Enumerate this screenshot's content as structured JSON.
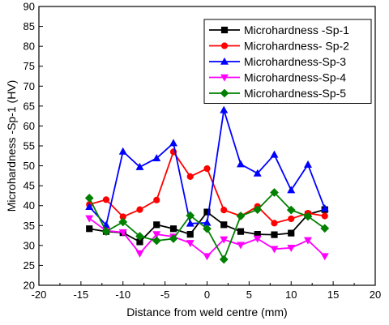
{
  "chart_data": {
    "type": "line",
    "xlabel": "Distance from weld centre (mm)",
    "ylabel": "Microhardness -Sp-1 (HV)",
    "xlim": [
      -20,
      20
    ],
    "ylim": [
      20,
      90
    ],
    "xticks": [
      -20,
      -15,
      -10,
      -5,
      0,
      5,
      10,
      15,
      20
    ],
    "yticks": [
      20,
      25,
      30,
      35,
      40,
      45,
      50,
      55,
      60,
      65,
      70,
      75,
      80,
      85,
      90
    ],
    "grid": false,
    "legend_position": "top-right",
    "x": [
      -14,
      -12,
      -10,
      -8,
      -6,
      -4,
      -2,
      0,
      2,
      4,
      6,
      8,
      10,
      12,
      14
    ],
    "series": [
      {
        "name": "Microhardness -Sp-1",
        "color": "#000000",
        "marker": "square",
        "values": [
          34.2,
          33.5,
          33.2,
          30.9,
          35.2,
          34.2,
          32.8,
          38.4,
          35.2,
          33.5,
          32.8,
          32.7,
          33.1,
          37.8,
          39.0
        ]
      },
      {
        "name": "Microhardness- Sp-2",
        "color": "#ff0000",
        "marker": "circle",
        "values": [
          40.3,
          41.5,
          37.2,
          39.0,
          41.4,
          53.5,
          47.3,
          49.3,
          38.9,
          37.4,
          39.8,
          35.6,
          36.7,
          38.1,
          37.4
        ]
      },
      {
        "name": "Microhardness-Sp-3",
        "color": "#0000ff",
        "marker": "triangle-up",
        "values": [
          39.7,
          35.1,
          53.6,
          49.7,
          51.9,
          55.7,
          35.5,
          35.7,
          64.0,
          50.4,
          48.1,
          52.8,
          43.9,
          50.3,
          39.3
        ]
      },
      {
        "name": "Microhardness-Sp-4",
        "color": "#ff00ff",
        "marker": "triangle-down",
        "values": [
          36.8,
          33.7,
          33.3,
          28.0,
          32.8,
          32.2,
          30.6,
          27.3,
          31.5,
          30.1,
          31.7,
          29.1,
          29.4,
          31.3,
          27.3
        ]
      },
      {
        "name": "Microhardness-Sp-5",
        "color": "#008000",
        "marker": "diamond",
        "values": [
          41.9,
          33.5,
          35.9,
          32.3,
          31.2,
          31.7,
          37.5,
          34.2,
          26.5,
          37.4,
          39.0,
          43.3,
          38.9,
          37.3,
          34.3
        ]
      }
    ]
  }
}
